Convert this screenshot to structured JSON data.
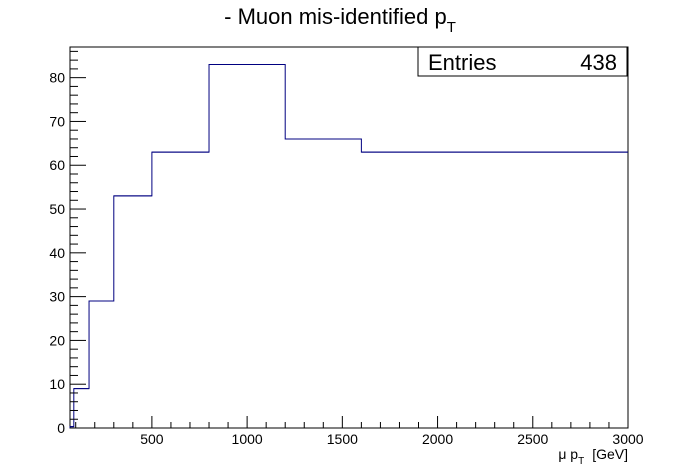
{
  "chart_data": {
    "type": "bar",
    "title": "- Muon mis-identified p",
    "title_subscript": "T",
    "xlabel_prefix": "μ p",
    "xlabel_subscript": "T",
    "xlabel_suffix": "[GeV]",
    "ylabel": "",
    "bin_edges": [
      70,
      90,
      170,
      300,
      500,
      800,
      1200,
      1600,
      3000
    ],
    "values": [
      0.3,
      9,
      29,
      53,
      63,
      83,
      66,
      63
    ],
    "xlim": [
      70,
      3000
    ],
    "ylim": [
      0,
      87
    ],
    "x_ticks": [
      500,
      1000,
      1500,
      2000,
      2500,
      3000
    ],
    "y_ticks": [
      0,
      10,
      20,
      30,
      40,
      50,
      60,
      70,
      80
    ],
    "grid": false,
    "line_color": "#000080",
    "stats": {
      "label": "Entries",
      "value": "438"
    }
  }
}
